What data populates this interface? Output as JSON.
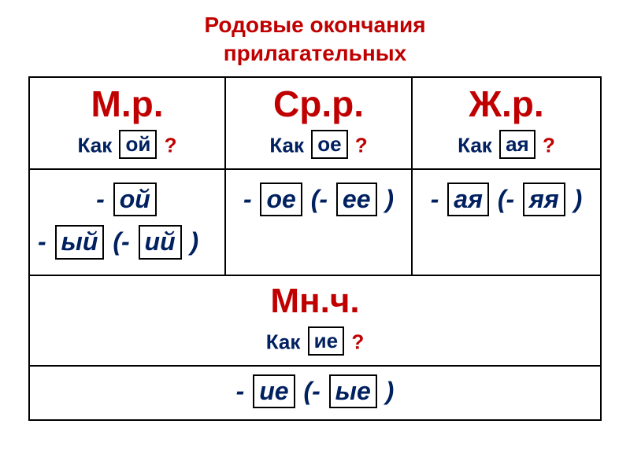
{
  "title": {
    "line1": "Родовые  окончания",
    "line2": "прилагательных",
    "color": "#c00000",
    "fontsize": 28
  },
  "colors": {
    "headerMain": "#c00000",
    "question": "#002060",
    "endings": "#002060",
    "border": "#000000",
    "boxBorder": "#000000"
  },
  "fonts": {
    "headerMain": 46,
    "question": 26,
    "endings": 32,
    "pluralMain": 44,
    "pluralQuestion": 26,
    "pluralEndings": 32
  },
  "columns": [
    {
      "header": "М.р.",
      "qPrefix": "Как",
      "qBox": "ой",
      "qMark": "?",
      "endings": {
        "line1": {
          "dash": "-",
          "box": "ой"
        },
        "line2": {
          "dash1": "-",
          "box1": "ый",
          "paren1": "(-",
          "box2": "ий",
          "paren2": ")"
        }
      }
    },
    {
      "header": "Ср.р.",
      "qPrefix": "Как",
      "qBox": "ое",
      "qMark": "?",
      "endings": {
        "line1": {
          "dash": "-",
          "box": "ое",
          "paren1": "(-",
          "box2": "ее",
          "paren2": ")"
        }
      }
    },
    {
      "header": "Ж.р.",
      "qPrefix": "Как",
      "qBox": "ая",
      "qMark": "?",
      "endings": {
        "line1": {
          "dash": "-",
          "box": "ая",
          "paren1": "(-",
          "box2": "яя",
          "paren2": ")"
        }
      }
    }
  ],
  "plural": {
    "header": "Мн.ч.",
    "qPrefix": "Как",
    "qBox": "ие",
    "qMark": "?",
    "endings": {
      "dash": "-",
      "box1": "ие",
      "paren1": "(-",
      "box2": "ые",
      "paren2": ")"
    }
  }
}
